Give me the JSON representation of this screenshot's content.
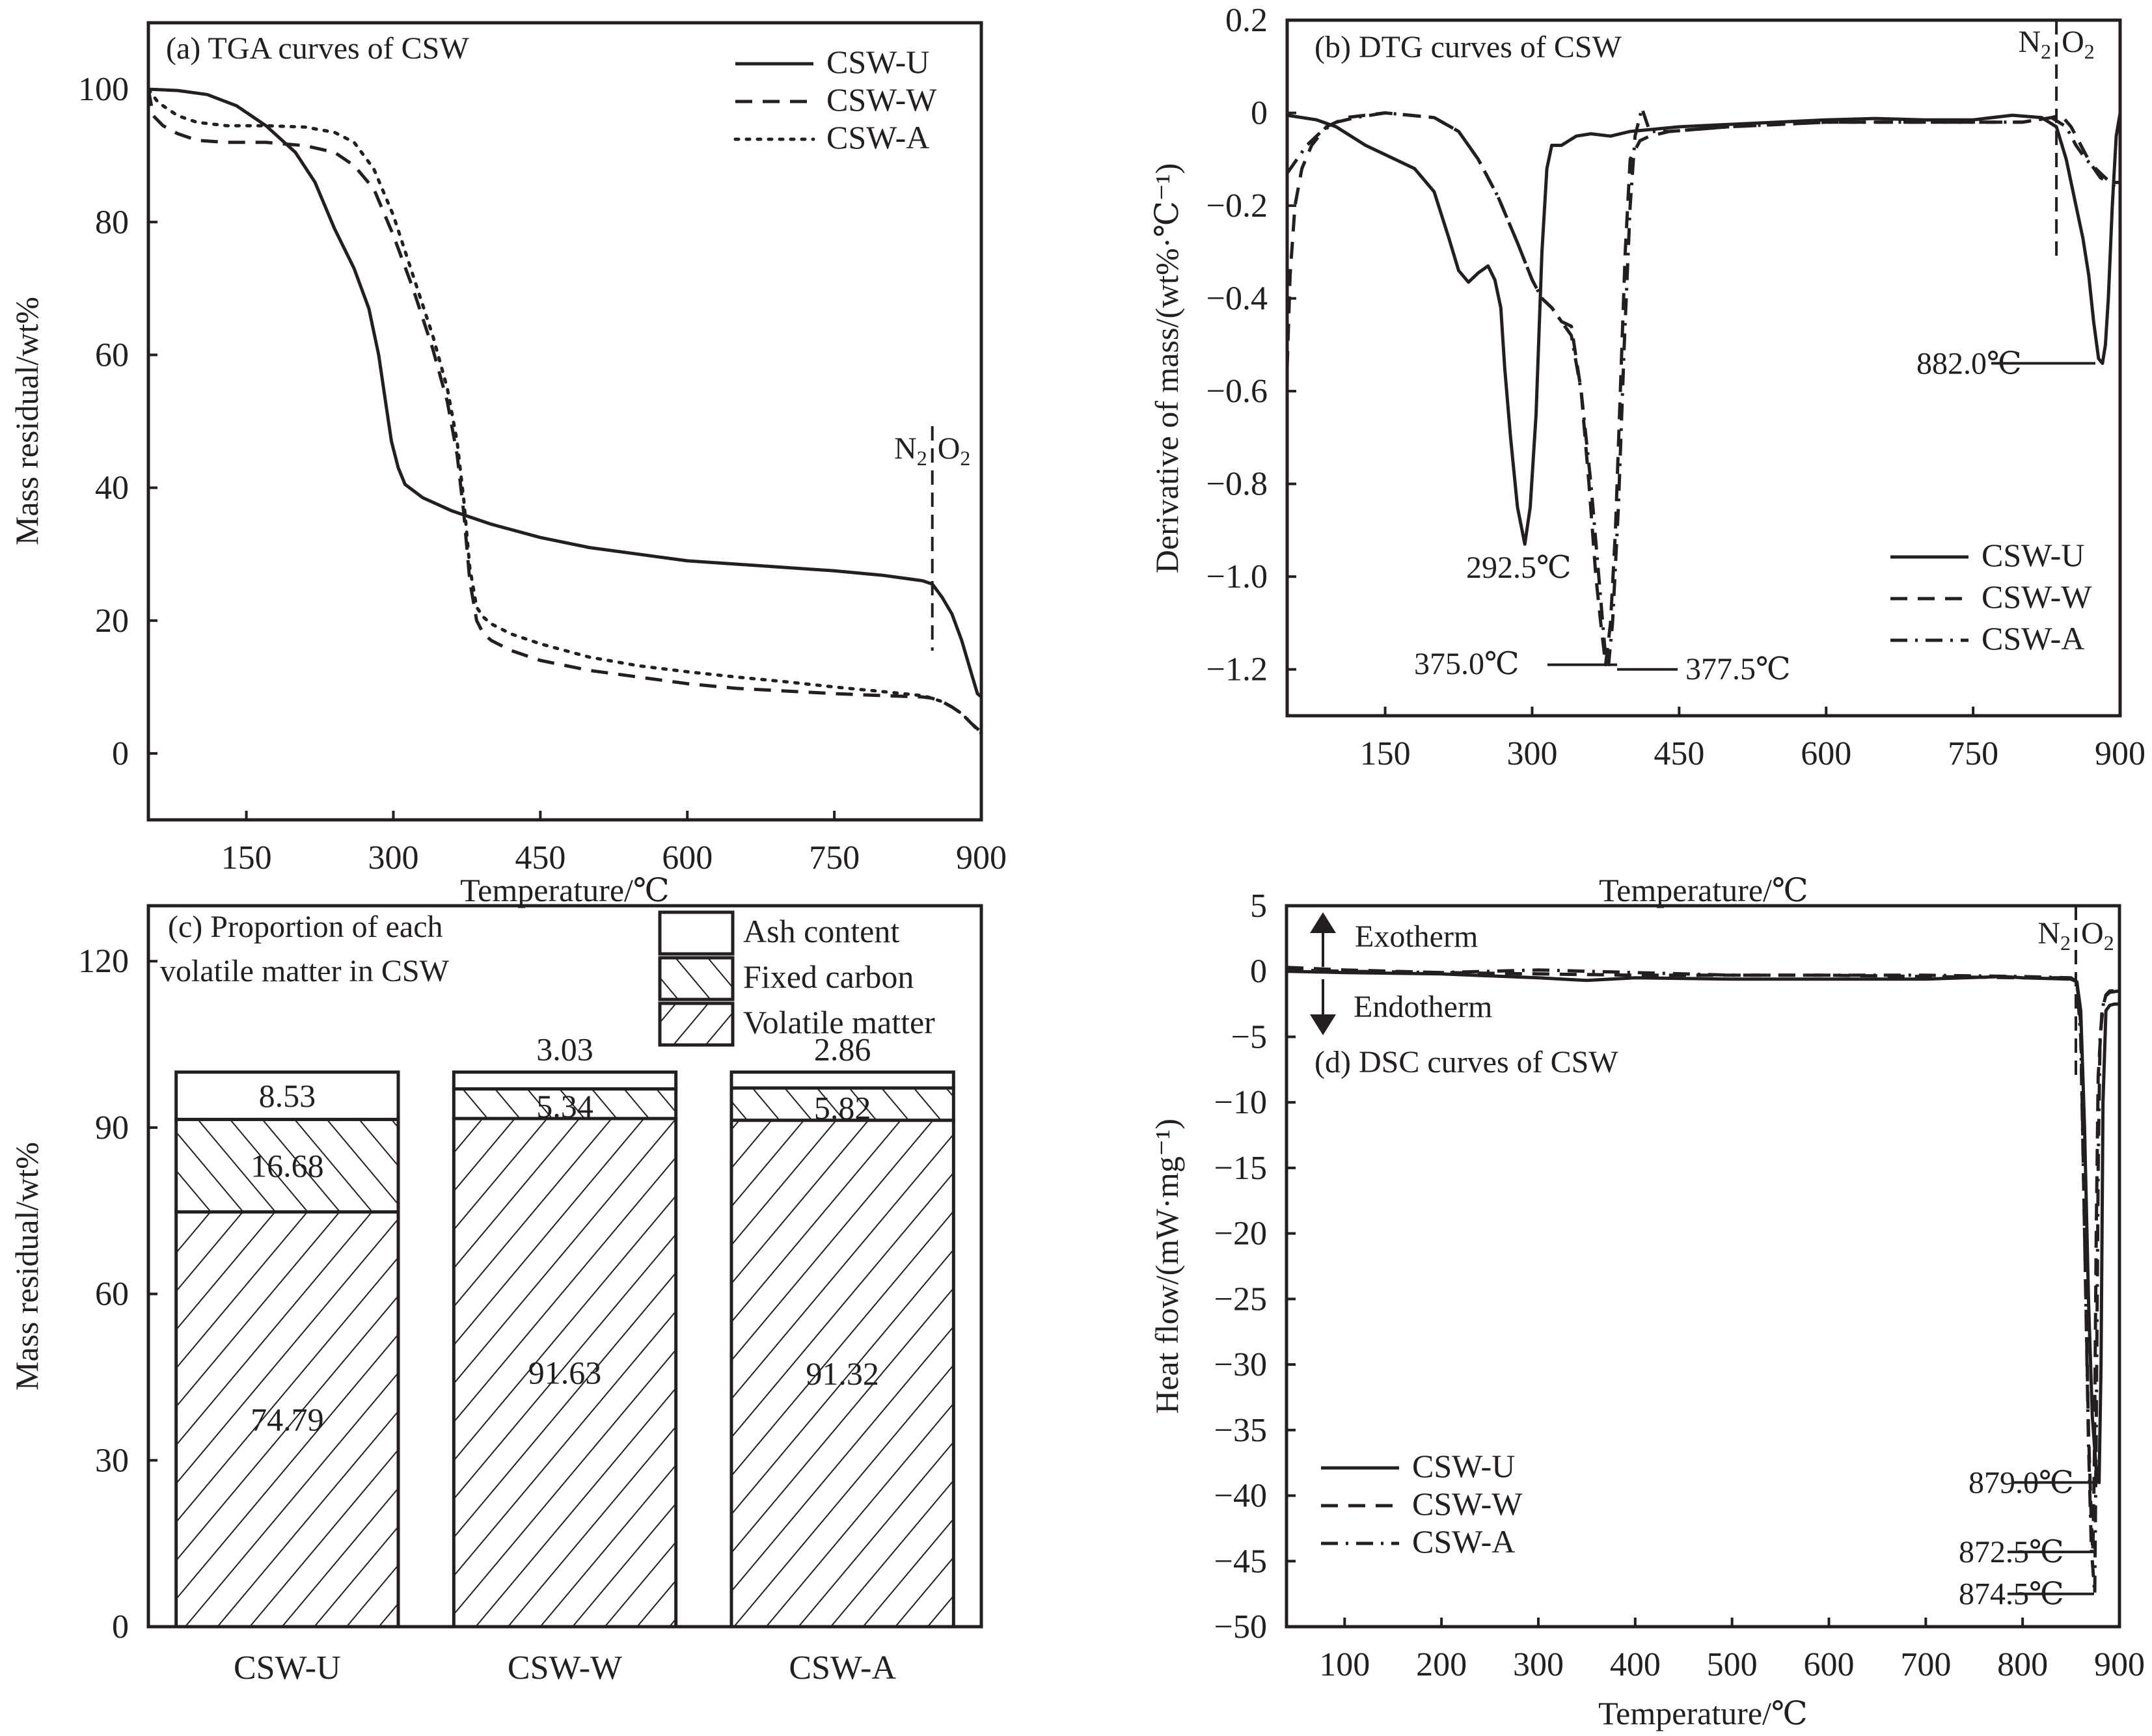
{
  "figure": {
    "gas_labels": {
      "n2": "N",
      "n2_sub": "2",
      "o2": "O",
      "o2_sub": "2"
    },
    "series_styles": {
      "CSW-U": "solid",
      "CSW-W": "dashed",
      "CSW-A": "dotted"
    }
  },
  "chart_data": [
    {
      "id": "a",
      "type": "line",
      "title": "(a) TGA curves of CSW",
      "xlabel": "Temperature/℃",
      "ylabel": "Mass residual/wt%",
      "xlim": [
        50,
        900
      ],
      "ylim": [
        -10,
        110
      ],
      "xticks": [
        150,
        300,
        450,
        600,
        750,
        900
      ],
      "yticks": [
        0,
        20,
        40,
        60,
        80,
        100
      ],
      "legend_position": "top-right",
      "gas_switch_temperature": 850,
      "series": [
        {
          "name": "CSW-U",
          "style": "solid",
          "x": [
            50,
            80,
            110,
            140,
            170,
            200,
            220,
            240,
            260,
            275,
            285,
            292,
            298,
            305,
            312,
            330,
            360,
            400,
            450,
            500,
            550,
            600,
            650,
            700,
            750,
            800,
            840,
            850,
            860,
            870,
            880,
            890,
            896,
            900
          ],
          "y": [
            100,
            99.8,
            99.2,
            97.5,
            94.5,
            90.5,
            86,
            79,
            73,
            67,
            60,
            53,
            47,
            43,
            40.5,
            38.5,
            36.5,
            34.5,
            32.5,
            31,
            30,
            29,
            28.5,
            28,
            27.5,
            26.8,
            26,
            25.5,
            23.5,
            21,
            17,
            12,
            9,
            8.5
          ]
        },
        {
          "name": "CSW-W",
          "style": "dashed",
          "x": [
            50,
            55,
            65,
            80,
            100,
            130,
            170,
            210,
            240,
            260,
            280,
            300,
            320,
            340,
            355,
            365,
            372,
            378,
            385,
            392,
            400,
            420,
            450,
            500,
            550,
            600,
            650,
            700,
            750,
            800,
            840,
            850,
            860,
            870,
            880,
            890,
            900
          ],
          "y": [
            100,
            96,
            94.5,
            93.3,
            92.3,
            92,
            92,
            91.5,
            90.5,
            88.5,
            85,
            78,
            70,
            61,
            53,
            45,
            36,
            26,
            20,
            18,
            17,
            15.5,
            14,
            12.5,
            11.5,
            10.5,
            9.8,
            9.4,
            9,
            8.7,
            8.5,
            8.3,
            7.8,
            7,
            6,
            4.5,
            3.2
          ]
        },
        {
          "name": "CSW-A",
          "style": "dotted",
          "x": [
            50,
            60,
            80,
            100,
            130,
            170,
            210,
            240,
            260,
            280,
            300,
            320,
            340,
            355,
            365,
            372,
            378,
            385,
            392,
            400,
            420,
            450,
            500,
            550,
            600,
            650,
            700,
            750,
            800,
            840,
            850,
            860,
            870,
            880,
            890,
            900
          ],
          "y": [
            100,
            98,
            96,
            95,
            94.5,
            94.5,
            94.3,
            93.5,
            92,
            88,
            81,
            72,
            63,
            55,
            47,
            38,
            28,
            22,
            20.5,
            19.5,
            18,
            16.5,
            14.5,
            13.2,
            12.3,
            11.5,
            10.8,
            10,
            9.3,
            8.7,
            8.3,
            7.8,
            7,
            6,
            4.5,
            3
          ]
        }
      ]
    },
    {
      "id": "b",
      "type": "line",
      "title": "(b) DTG curves of CSW",
      "xlabel": "Temperature/℃",
      "ylabel": "Derivative of mass/(wt%·℃⁻¹)",
      "xlim": [
        50,
        900
      ],
      "ylim": [
        -1.3,
        0.2
      ],
      "xticks": [
        150,
        300,
        450,
        600,
        750,
        900
      ],
      "yticks": [
        0.2,
        0,
        -0.2,
        -0.4,
        -0.6,
        -0.8,
        -1.0,
        -1.2
      ],
      "legend_position": "bottom-right",
      "gas_switch_temperature": 835,
      "series": [
        {
          "name": "CSW-U",
          "style": "solid",
          "x": [
            50,
            80,
            100,
            130,
            160,
            180,
            200,
            215,
            225,
            235,
            245,
            255,
            262,
            268,
            272,
            278,
            285,
            292.5,
            298,
            304,
            310,
            315,
            320,
            330,
            345,
            360,
            380,
            400,
            450,
            500,
            550,
            600,
            650,
            700,
            750,
            790,
            820,
            835,
            845,
            855,
            862,
            868,
            873,
            878,
            882,
            885,
            888,
            892,
            896,
            900
          ],
          "y": [
            -0.005,
            -0.015,
            -0.03,
            -0.07,
            -0.1,
            -0.12,
            -0.17,
            -0.27,
            -0.34,
            -0.365,
            -0.345,
            -0.33,
            -0.36,
            -0.42,
            -0.55,
            -0.7,
            -0.85,
            -0.93,
            -0.85,
            -0.65,
            -0.3,
            -0.12,
            -0.07,
            -0.07,
            -0.05,
            -0.045,
            -0.05,
            -0.04,
            -0.03,
            -0.025,
            -0.02,
            -0.015,
            -0.012,
            -0.015,
            -0.015,
            -0.005,
            -0.01,
            -0.03,
            -0.1,
            -0.2,
            -0.27,
            -0.35,
            -0.45,
            -0.53,
            -0.54,
            -0.5,
            -0.4,
            -0.2,
            -0.05,
            0
          ]
        },
        {
          "name": "CSW-W",
          "style": "dashed",
          "x": [
            50,
            53,
            58,
            65,
            75,
            90,
            110,
            150,
            200,
            225,
            245,
            265,
            285,
            300,
            310,
            320,
            330,
            340,
            350,
            358,
            365,
            370,
            375,
            380,
            385,
            390,
            395,
            400,
            410,
            420,
            440,
            500,
            600,
            700,
            800,
            830,
            840,
            850,
            860,
            870,
            880,
            890,
            900
          ],
          "y": [
            -0.55,
            -0.35,
            -0.2,
            -0.12,
            -0.07,
            -0.03,
            -0.01,
            0,
            -0.01,
            -0.04,
            -0.1,
            -0.18,
            -0.28,
            -0.36,
            -0.4,
            -0.42,
            -0.45,
            -0.46,
            -0.6,
            -0.8,
            -1.0,
            -1.1,
            -1.19,
            -1.1,
            -0.9,
            -0.6,
            -0.3,
            -0.1,
            -0.06,
            -0.05,
            -0.04,
            -0.03,
            -0.02,
            -0.02,
            -0.02,
            -0.01,
            -0.005,
            -0.03,
            -0.07,
            -0.11,
            -0.14,
            -0.15,
            -0.15
          ]
        },
        {
          "name": "CSW-A",
          "style": "dotted",
          "x": [
            50,
            60,
            70,
            85,
            100,
            120,
            150,
            200,
            225,
            245,
            265,
            285,
            300,
            310,
            320,
            330,
            340,
            350,
            360,
            368,
            374,
            377.5,
            382,
            388,
            394,
            400,
            405,
            412,
            420,
            440,
            500,
            600,
            700,
            800,
            830,
            845,
            855,
            865,
            875,
            885,
            895,
            900
          ],
          "y": [
            -0.13,
            -0.1,
            -0.07,
            -0.04,
            -0.02,
            -0.01,
            0,
            -0.01,
            -0.04,
            -0.1,
            -0.18,
            -0.28,
            -0.36,
            -0.4,
            -0.42,
            -0.45,
            -0.48,
            -0.6,
            -0.8,
            -1.0,
            -1.15,
            -1.2,
            -1.1,
            -0.85,
            -0.5,
            -0.2,
            -0.05,
            0.01,
            -0.04,
            -0.04,
            -0.03,
            -0.02,
            -0.02,
            -0.02,
            -0.01,
            -0.03,
            -0.07,
            -0.1,
            -0.12,
            -0.14,
            -0.16,
            -0.15
          ]
        }
      ],
      "annotations": [
        {
          "text": "292.5℃",
          "x": 292.5,
          "y": -0.93
        },
        {
          "text": "375.0℃",
          "x": 375.0,
          "y": -1.19
        },
        {
          "text": "377.5℃",
          "x": 377.5,
          "y": -1.2
        },
        {
          "text": "882.0℃",
          "x": 882.0,
          "y": -0.54
        }
      ]
    },
    {
      "id": "c",
      "type": "bar",
      "stacked": true,
      "title_lines": [
        "(c) Proportion of each",
        "volatile matter in CSW"
      ],
      "xlabel": "",
      "ylabel": "Mass residual/wt%",
      "ylim": [
        0,
        130
      ],
      "yticks": [
        0,
        30,
        60,
        90,
        120
      ],
      "categories": [
        "CSW-U",
        "CSW-W",
        "CSW-A"
      ],
      "legend_position": "top-right",
      "series": [
        {
          "name": "Volatile matter",
          "pattern": "hatch-forward",
          "values": [
            74.79,
            91.63,
            91.32
          ]
        },
        {
          "name": "Fixed carbon",
          "pattern": "hatch-backward",
          "values": [
            16.68,
            5.34,
            5.82
          ]
        },
        {
          "name": "Ash content",
          "pattern": "none",
          "values": [
            8.53,
            3.03,
            2.86
          ]
        }
      ],
      "legend_order": [
        "Ash content",
        "Fixed carbon",
        "Volatile matter"
      ]
    },
    {
      "id": "d",
      "type": "line",
      "title": "(d) DSC curves of CSW",
      "xlabel": "Temperature/℃",
      "ylabel": "Heat flow/(mW·mg⁻¹)",
      "xlim": [
        40,
        900
      ],
      "ylim": [
        -50,
        5
      ],
      "xticks": [
        100,
        200,
        300,
        400,
        500,
        600,
        700,
        800,
        900
      ],
      "yticks": [
        5,
        0,
        -5,
        -10,
        -15,
        -20,
        -25,
        -30,
        -35,
        -40,
        -45,
        -50
      ],
      "legend_position": "bottom-left",
      "gas_switch_temperature": 855,
      "exotherm_label": "Exotherm",
      "endotherm_label": "Endotherm",
      "series": [
        {
          "name": "CSW-U",
          "style": "solid",
          "x": [
            40,
            100,
            200,
            300,
            350,
            400,
            500,
            600,
            700,
            780,
            800,
            850,
            856,
            860,
            864,
            868,
            872,
            876,
            879,
            881,
            883,
            886,
            890,
            895,
            900
          ],
          "y": [
            0,
            -0.1,
            -0.2,
            -0.5,
            -0.7,
            -0.5,
            -0.6,
            -0.6,
            -0.6,
            -0.4,
            -0.5,
            -0.6,
            -0.8,
            -3,
            -12,
            -25,
            -34,
            -38,
            -39,
            -30,
            -10,
            -3,
            -2.6,
            -2.5,
            -2.5
          ]
        },
        {
          "name": "CSW-W",
          "style": "dashed",
          "x": [
            40,
            100,
            200,
            300,
            400,
            500,
            600,
            700,
            800,
            850,
            856,
            860,
            864,
            868,
            871,
            872.5,
            874,
            876,
            878,
            882,
            886,
            890,
            900
          ],
          "y": [
            0.3,
            0.1,
            -0.1,
            -0.2,
            -0.3,
            -0.3,
            -0.3,
            -0.4,
            -0.5,
            -0.5,
            -0.7,
            -4,
            -20,
            -35,
            -42,
            -44.3,
            -38,
            -20,
            -8,
            -3,
            -1.8,
            -1.5,
            -1.5
          ]
        },
        {
          "name": "CSW-A",
          "style": "dotted",
          "x": [
            40,
            100,
            200,
            300,
            400,
            500,
            600,
            700,
            800,
            850,
            856,
            860,
            864,
            868,
            871,
            874.5,
            876,
            878,
            880,
            884,
            890,
            900
          ],
          "y": [
            0.1,
            0,
            -0.1,
            0.1,
            -0.1,
            -0.3,
            -0.3,
            -0.3,
            -0.4,
            -0.5,
            -0.8,
            -5,
            -20,
            -36,
            -44,
            -47.5,
            -35,
            -15,
            -5,
            -2,
            -1.6,
            -1.5
          ]
        }
      ],
      "annotations": [
        {
          "text": "879.0℃",
          "x": 879.0,
          "y": -39
        },
        {
          "text": "872.5℃",
          "x": 872.5,
          "y": -44.3
        },
        {
          "text": "874.5℃",
          "x": 874.5,
          "y": -47.5
        }
      ]
    }
  ]
}
